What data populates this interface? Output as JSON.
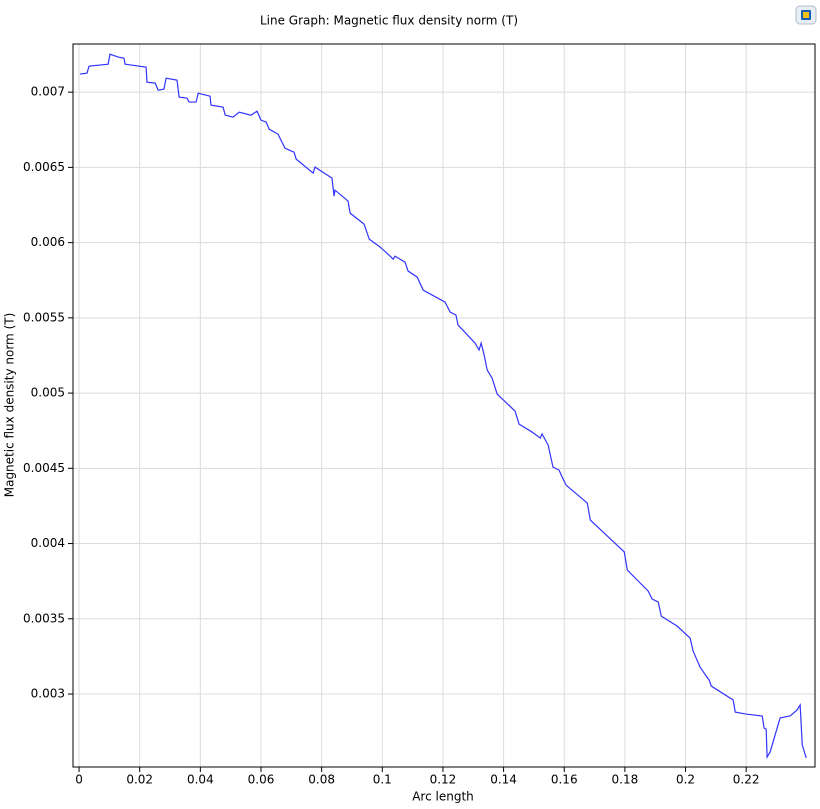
{
  "chart_data": {
    "type": "line",
    "title": "Line Graph: Magnetic flux density norm (T)",
    "x_label": "Arc length",
    "y_label": "Magnetic flux density norm (T)",
    "xlim": [
      -0.002,
      0.2427
    ],
    "ylim": [
      0.002515,
      0.00732
    ],
    "xticks": [
      0,
      0.02,
      0.04,
      0.06,
      0.08,
      0.1,
      0.12,
      0.14,
      0.16,
      0.18,
      0.2,
      0.22
    ],
    "yticks": [
      0.003,
      0.0035,
      0.004,
      0.0045,
      0.005,
      0.0055,
      0.006,
      0.0065,
      0.007
    ],
    "grid": true,
    "series": [
      {
        "color": "#3333ff",
        "x": [
          0.0003,
          0.0026,
          0.0033,
          0.0096,
          0.0102,
          0.0129,
          0.0148,
          0.0152,
          0.0221,
          0.0224,
          0.0251,
          0.0261,
          0.028,
          0.0287,
          0.0323,
          0.033,
          0.0356,
          0.0363,
          0.0386,
          0.0393,
          0.0432,
          0.0435,
          0.0475,
          0.0482,
          0.0508,
          0.0528,
          0.0567,
          0.0587,
          0.06,
          0.0617,
          0.0627,
          0.0656,
          0.0679,
          0.0709,
          0.0716,
          0.0772,
          0.0778,
          0.0834,
          0.0841,
          0.0844,
          0.0887,
          0.0894,
          0.094,
          0.0957,
          0.0993,
          0.1026,
          0.1036,
          0.1042,
          0.1075,
          0.1085,
          0.1115,
          0.1135,
          0.1207,
          0.1224,
          0.1243,
          0.125,
          0.1306,
          0.1319,
          0.1326,
          0.1336,
          0.1346,
          0.1362,
          0.1379,
          0.1438,
          0.1451,
          0.1494,
          0.1521,
          0.1527,
          0.1547,
          0.1563,
          0.1583,
          0.1593,
          0.1606,
          0.1676,
          0.1686,
          0.1798,
          0.1808,
          0.1877,
          0.189,
          0.191,
          0.192,
          0.1972,
          0.2015,
          0.2025,
          0.2035,
          0.2048,
          0.2068,
          0.2078,
          0.2085,
          0.2157,
          0.2164,
          0.22,
          0.2253,
          0.2259,
          0.2266,
          0.2269,
          0.2279,
          0.2312,
          0.2345,
          0.2368,
          0.2378,
          0.2385,
          0.2398
        ],
        "values": [
          0.00712,
          0.007126,
          0.007173,
          0.007186,
          0.007252,
          0.007233,
          0.007226,
          0.007186,
          0.007166,
          0.007066,
          0.00706,
          0.007013,
          0.00702,
          0.007093,
          0.00708,
          0.006967,
          0.00696,
          0.006934,
          0.006934,
          0.006993,
          0.006973,
          0.006914,
          0.0069,
          0.006847,
          0.006834,
          0.006867,
          0.006847,
          0.006874,
          0.006814,
          0.006801,
          0.006754,
          0.006721,
          0.006628,
          0.006601,
          0.006555,
          0.006462,
          0.006502,
          0.006429,
          0.006309,
          0.006349,
          0.006276,
          0.006196,
          0.006123,
          0.006023,
          0.00597,
          0.00591,
          0.00589,
          0.00591,
          0.00587,
          0.005811,
          0.005771,
          0.005684,
          0.005605,
          0.005538,
          0.005518,
          0.005452,
          0.005332,
          0.005286,
          0.005332,
          0.005252,
          0.005153,
          0.0051,
          0.004993,
          0.00488,
          0.004794,
          0.004741,
          0.004701,
          0.004728,
          0.004654,
          0.004508,
          0.004488,
          0.004442,
          0.004389,
          0.004269,
          0.004156,
          0.003944,
          0.003824,
          0.003684,
          0.003631,
          0.003611,
          0.003518,
          0.003452,
          0.003372,
          0.003286,
          0.003239,
          0.003179,
          0.00312,
          0.003093,
          0.003053,
          0.00296,
          0.00288,
          0.002867,
          0.002854,
          0.002774,
          0.002767,
          0.002581,
          0.002615,
          0.002841,
          0.002854,
          0.002894,
          0.002927,
          0.002661,
          0.002575
        ]
      }
    ]
  }
}
